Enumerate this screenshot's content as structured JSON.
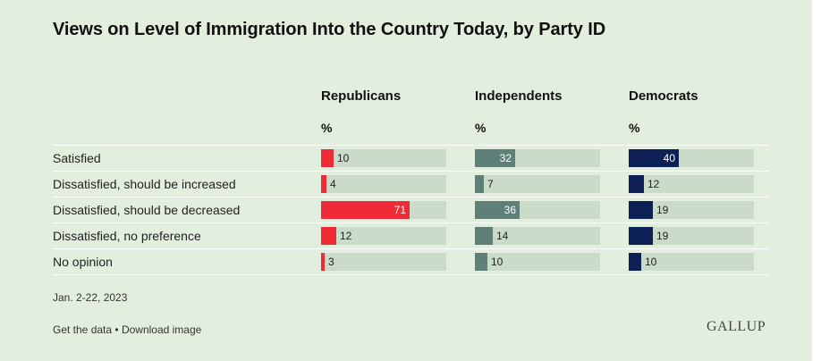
{
  "title": "Views on Level of Immigration Into the Country Today, by Party ID",
  "unit_label": "%",
  "footnote": "Jan. 2-22, 2023",
  "links": {
    "get_data": "Get the data",
    "separator": "•",
    "download": "Download image"
  },
  "brand": "GALLUP",
  "colors": {
    "background": "#e3efde",
    "track": "#cadcc9",
    "republicans": "#ee2b37",
    "independents": "#5f7f79",
    "democrats": "#0e2157"
  },
  "chart_data": {
    "type": "bar",
    "orientation": "horizontal",
    "title": "Views on Level of Immigration Into the Country Today, by Party ID",
    "categories": [
      "Satisfied",
      "Dissatisfied, should be increased",
      "Dissatisfied, should be decreased",
      "Dissatisfied, no preference",
      "No opinion"
    ],
    "xlim": [
      0,
      100
    ],
    "grid": false,
    "series": [
      {
        "name": "Republicans",
        "values": [
          10,
          4,
          71,
          12,
          3
        ]
      },
      {
        "name": "Independents",
        "values": [
          32,
          7,
          36,
          14,
          10
        ]
      },
      {
        "name": "Democrats",
        "values": [
          40,
          12,
          19,
          19,
          10
        ]
      }
    ]
  }
}
